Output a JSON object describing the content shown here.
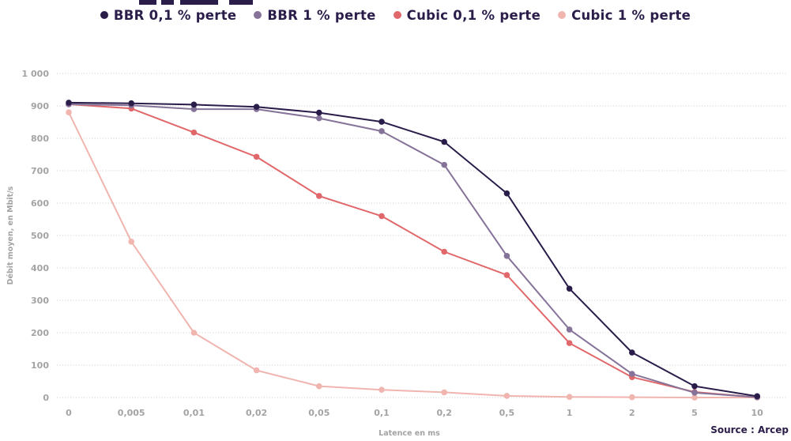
{
  "chart_data": {
    "type": "line",
    "title": "",
    "xlabel": "Latence en ms",
    "ylabel": "Débit moyen, en Mbit/s",
    "categories": [
      "0",
      "0,005",
      "0,01",
      "0,02",
      "0,05",
      "0,1",
      "0,2",
      "0,5",
      "1",
      "2",
      "5",
      "10"
    ],
    "ylim": [
      0,
      1000
    ],
    "yticks": [
      0,
      100,
      200,
      300,
      400,
      500,
      600,
      700,
      800,
      900,
      1000
    ],
    "ytick_labels": [
      "0",
      "100",
      "200",
      "300",
      "400",
      "500",
      "600",
      "700",
      "800",
      "900",
      "1 000"
    ],
    "grid": "horizontal-dotted",
    "legend_position": "top",
    "series": [
      {
        "name": "BBR 0,1 % perte",
        "color": "#2a1d4a",
        "values": [
          910,
          908,
          904,
          897,
          879,
          851,
          789,
          630,
          336,
          139,
          35,
          4
        ]
      },
      {
        "name": "BBR 1 % perte",
        "color": "#857399",
        "values": [
          905,
          902,
          890,
          890,
          862,
          822,
          718,
          437,
          210,
          73,
          15,
          1
        ]
      },
      {
        "name": "Cubic 0,1 % perte",
        "color": "#e0686b",
        "values": [
          905,
          892,
          818,
          743,
          622,
          560,
          450,
          378,
          168,
          63,
          17,
          1
        ]
      },
      {
        "name": "Cubic 1 % perte",
        "color": "#f0b5af",
        "values": [
          880,
          481,
          200,
          84,
          35,
          24,
          16,
          5,
          2,
          1,
          0,
          0
        ]
      }
    ]
  },
  "source": "Source : Arcep"
}
